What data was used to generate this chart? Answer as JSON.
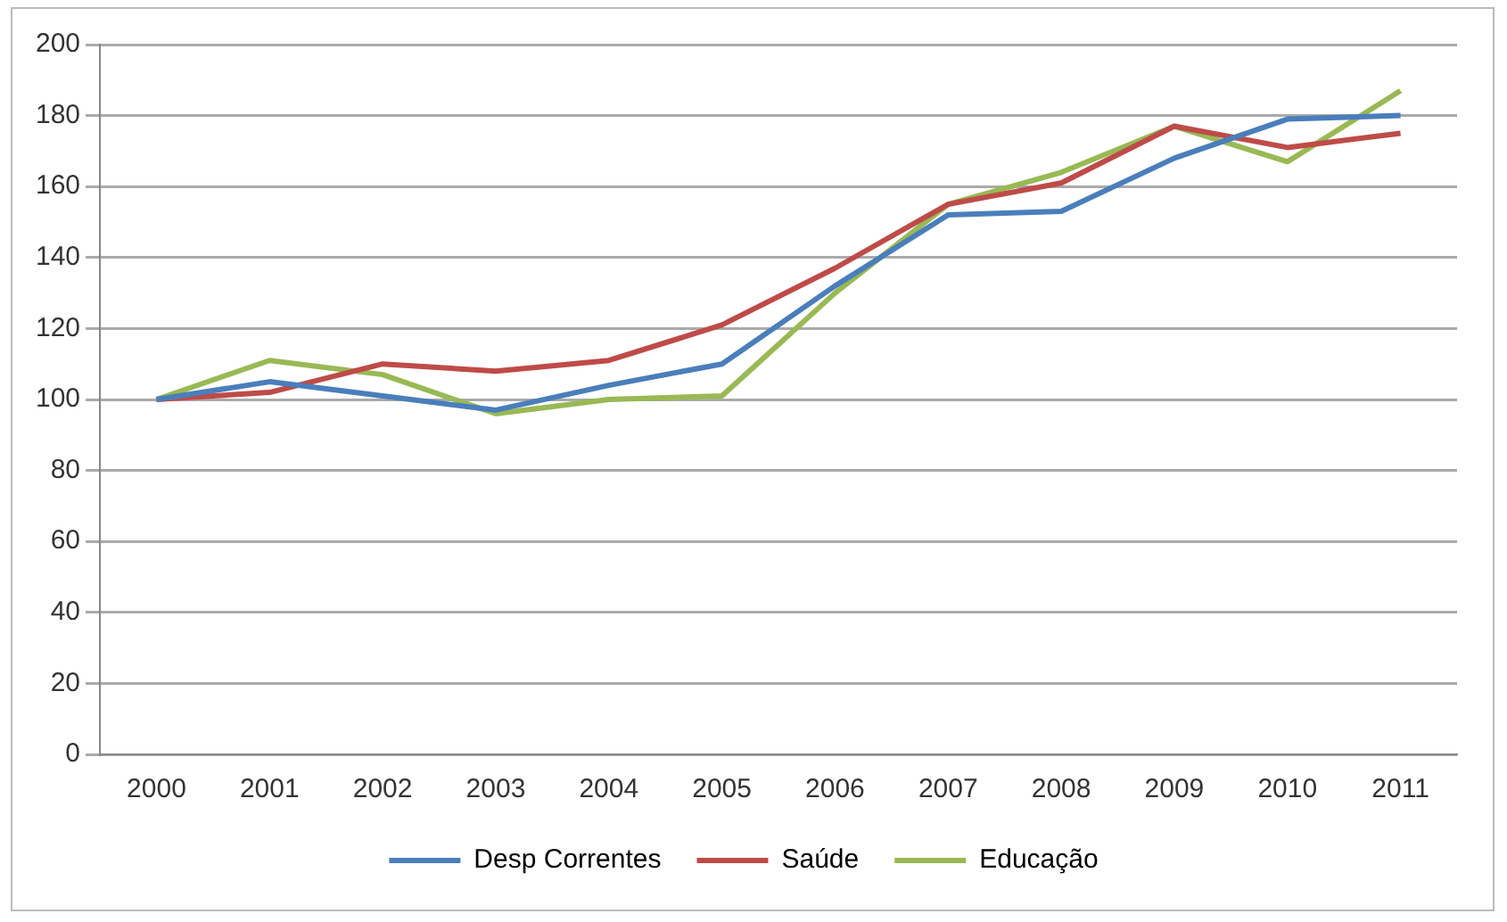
{
  "chart_data": {
    "type": "line",
    "categories": [
      "2000",
      "2001",
      "2002",
      "2003",
      "2004",
      "2005",
      "2006",
      "2007",
      "2008",
      "2009",
      "2010",
      "2011"
    ],
    "series": [
      {
        "name": "Desp Correntes",
        "color": "#4a7ebb",
        "values": [
          100,
          105,
          101,
          97,
          104,
          110,
          132,
          152,
          153,
          168,
          179,
          180
        ]
      },
      {
        "name": "Saúde",
        "color": "#be4b48",
        "values": [
          100,
          102,
          110,
          108,
          111,
          121,
          137,
          155,
          161,
          177,
          171,
          175
        ]
      },
      {
        "name": "Educação",
        "color": "#98b954",
        "values": [
          100,
          111,
          107,
          96,
          100,
          101,
          130,
          155,
          164,
          177,
          167,
          187
        ]
      }
    ],
    "ylim": [
      0,
      200
    ],
    "yticks": [
      0,
      20,
      40,
      60,
      80,
      100,
      120,
      140,
      160,
      180,
      200
    ],
    "grid": "y",
    "legend": "bottom",
    "marker": "none",
    "line_style": "solid"
  }
}
